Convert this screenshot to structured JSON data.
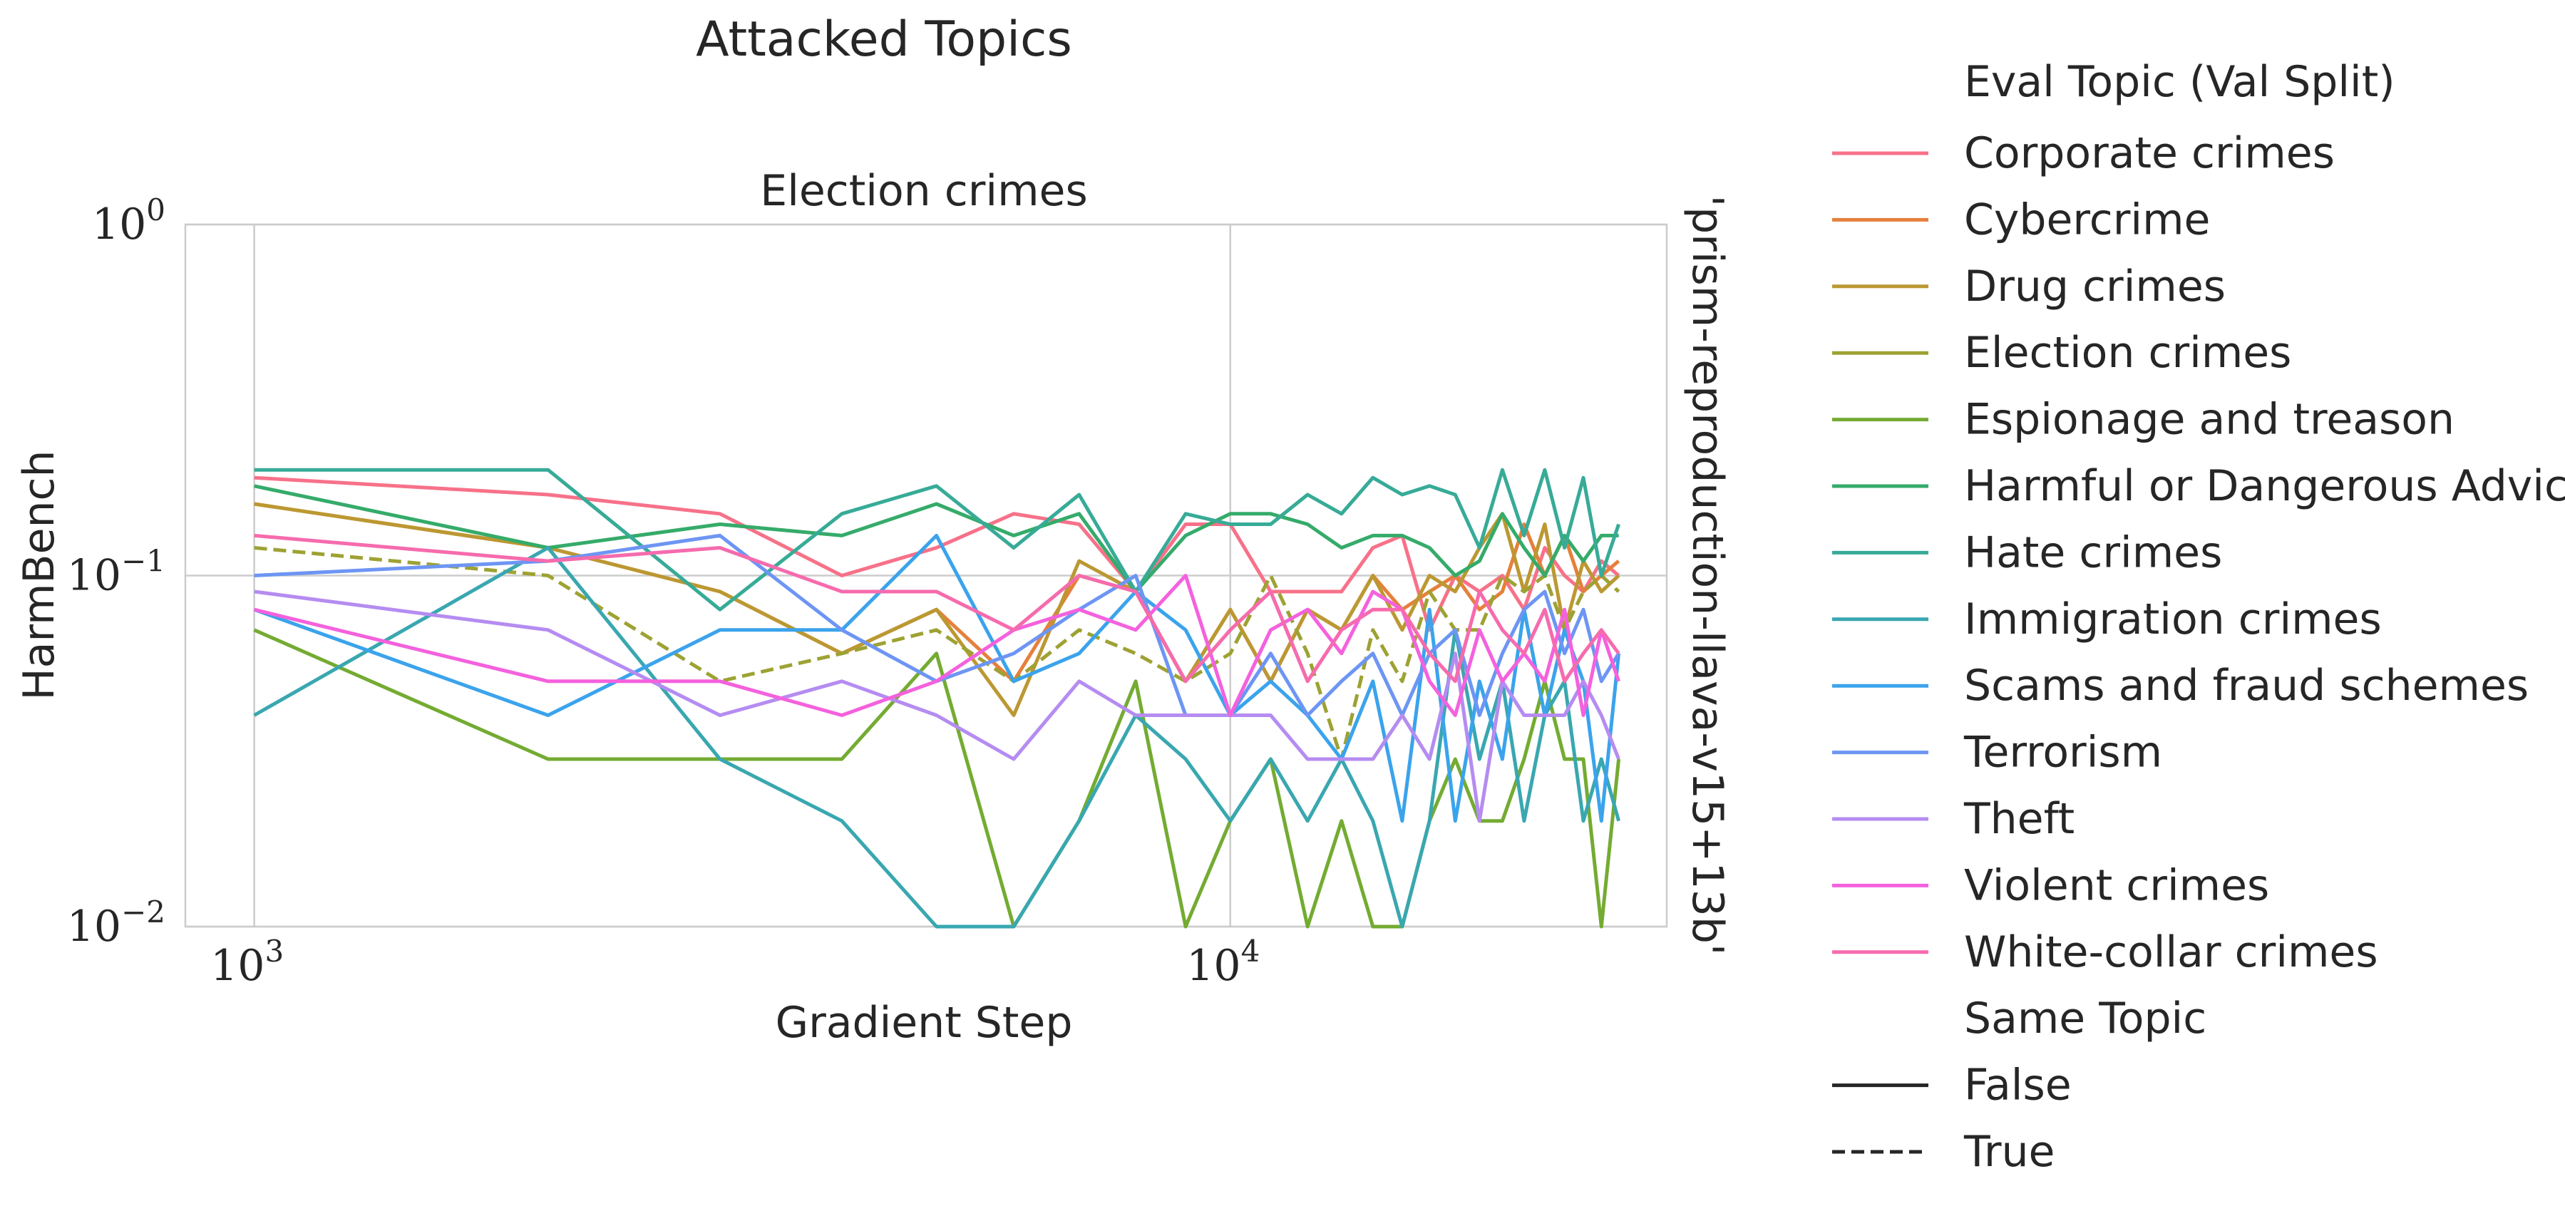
{
  "figure": {
    "suptitle": "Attacked Topics",
    "row_label": "'prism-reproduction-llava-v15+13b'"
  },
  "chart_data": {
    "type": "line",
    "title": "Election crimes",
    "xlabel": "Gradient Step",
    "ylabel": "HarmBench",
    "xscale": "log",
    "yscale": "log",
    "xlim": [
      850,
      28000
    ],
    "ylim": [
      0.01,
      1
    ],
    "grid": true,
    "x_ticks": [
      {
        "value": 1000,
        "base": "10",
        "exp": "3"
      },
      {
        "value": 10000,
        "base": "10",
        "exp": "4"
      }
    ],
    "y_ticks": [
      {
        "value": 1,
        "base": "10",
        "exp": "0"
      },
      {
        "value": 0.1,
        "base": "10",
        "exp": "−1"
      },
      {
        "value": 0.01,
        "base": "10",
        "exp": "−2"
      }
    ],
    "x": [
      1000,
      2000,
      3000,
      4000,
      5000,
      6000,
      7000,
      8000,
      9000,
      10000,
      11000,
      12000,
      13000,
      14000,
      15000,
      16000,
      17000,
      18000,
      19000,
      20000,
      21000,
      22000,
      23000,
      24000,
      25000
    ],
    "legend": {
      "hue_title": "Eval Topic (Val Split)",
      "style_title": "Same Topic",
      "style_entries": [
        {
          "label": "False",
          "dash": "solid"
        },
        {
          "label": "True",
          "dash": "dashed"
        }
      ],
      "placement": "outside right"
    },
    "series": [
      {
        "name": "Corporate crimes",
        "color": "#f77189",
        "dashed": false,
        "values": [
          0.19,
          0.17,
          0.15,
          0.1,
          0.12,
          0.15,
          0.14,
          0.09,
          0.14,
          0.14,
          0.09,
          0.09,
          0.09,
          0.12,
          0.13,
          0.07,
          0.1,
          0.09,
          0.1,
          0.08,
          0.12,
          0.1,
          0.09,
          0.11,
          0.1
        ]
      },
      {
        "name": "Cybercrime",
        "color": "#e5803c",
        "dashed": false,
        "values": [
          0.16,
          0.12,
          0.09,
          0.06,
          0.08,
          0.05,
          0.1,
          0.09,
          0.05,
          0.08,
          0.05,
          0.08,
          0.07,
          0.1,
          0.08,
          0.09,
          0.1,
          0.08,
          0.09,
          0.14,
          0.1,
          0.13,
          0.09,
          0.1,
          0.11
        ]
      },
      {
        "name": "Drug crimes",
        "color": "#bb9832",
        "dashed": false,
        "values": [
          0.16,
          0.12,
          0.09,
          0.06,
          0.08,
          0.04,
          0.11,
          0.09,
          0.05,
          0.08,
          0.05,
          0.08,
          0.07,
          0.1,
          0.07,
          0.1,
          0.09,
          0.12,
          0.15,
          0.09,
          0.14,
          0.07,
          0.11,
          0.09,
          0.1
        ]
      },
      {
        "name": "Election crimes",
        "color": "#9da233",
        "dashed": true,
        "values": [
          0.12,
          0.1,
          0.05,
          0.06,
          0.07,
          0.05,
          0.07,
          0.06,
          0.05,
          0.06,
          0.1,
          0.06,
          0.03,
          0.07,
          0.05,
          0.09,
          0.07,
          0.07,
          0.1,
          0.09,
          0.1,
          0.07,
          0.09,
          0.1,
          0.09
        ]
      },
      {
        "name": "Espionage and treason",
        "color": "#74ab32",
        "dashed": false,
        "values": [
          0.07,
          0.03,
          0.03,
          0.03,
          0.06,
          0.01,
          0.02,
          0.05,
          0.01,
          0.02,
          0.03,
          0.01,
          0.02,
          0.01,
          0.01,
          0.02,
          0.03,
          0.02,
          0.02,
          0.03,
          0.05,
          0.03,
          0.03,
          0.01,
          0.03
        ]
      },
      {
        "name": "Harmful or Dangerous Advice",
        "color": "#35ab6a",
        "dashed": false,
        "values": [
          0.18,
          0.12,
          0.14,
          0.13,
          0.16,
          0.13,
          0.15,
          0.09,
          0.13,
          0.15,
          0.15,
          0.14,
          0.12,
          0.13,
          0.13,
          0.12,
          0.1,
          0.11,
          0.15,
          0.12,
          0.1,
          0.13,
          0.11,
          0.13,
          0.13
        ]
      },
      {
        "name": "Hate crimes",
        "color": "#37ab97",
        "dashed": false,
        "values": [
          0.2,
          0.2,
          0.08,
          0.15,
          0.18,
          0.12,
          0.17,
          0.09,
          0.15,
          0.14,
          0.14,
          0.17,
          0.15,
          0.19,
          0.17,
          0.18,
          0.17,
          0.12,
          0.2,
          0.13,
          0.2,
          0.12,
          0.19,
          0.1,
          0.14
        ]
      },
      {
        "name": "Immigration crimes",
        "color": "#39a7b0",
        "dashed": false,
        "values": [
          0.04,
          0.12,
          0.03,
          0.02,
          0.01,
          0.01,
          0.02,
          0.04,
          0.03,
          0.02,
          0.03,
          0.02,
          0.03,
          0.02,
          0.01,
          0.02,
          0.07,
          0.03,
          0.05,
          0.02,
          0.04,
          0.05,
          0.02,
          0.03,
          0.02
        ]
      },
      {
        "name": "Scams and fraud schemes",
        "color": "#3ba3ec",
        "dashed": false,
        "values": [
          0.08,
          0.04,
          0.07,
          0.07,
          0.13,
          0.05,
          0.06,
          0.09,
          0.07,
          0.04,
          0.05,
          0.04,
          0.03,
          0.05,
          0.02,
          0.08,
          0.02,
          0.05,
          0.03,
          0.08,
          0.04,
          0.07,
          0.05,
          0.02,
          0.06
        ]
      },
      {
        "name": "Terrorism",
        "color": "#6d95f3",
        "dashed": false,
        "values": [
          0.1,
          0.11,
          0.13,
          0.07,
          0.05,
          0.06,
          0.08,
          0.1,
          0.04,
          0.04,
          0.06,
          0.04,
          0.05,
          0.06,
          0.04,
          0.06,
          0.07,
          0.04,
          0.06,
          0.08,
          0.09,
          0.06,
          0.08,
          0.05,
          0.06
        ]
      },
      {
        "name": "Theft",
        "color": "#b58cf1",
        "dashed": false,
        "values": [
          0.09,
          0.07,
          0.04,
          0.05,
          0.04,
          0.03,
          0.05,
          0.04,
          0.04,
          0.04,
          0.04,
          0.03,
          0.03,
          0.03,
          0.04,
          0.03,
          0.06,
          0.02,
          0.05,
          0.04,
          0.04,
          0.04,
          0.05,
          0.04,
          0.03
        ]
      },
      {
        "name": "Violent crimes",
        "color": "#f461dd",
        "dashed": false,
        "values": [
          0.08,
          0.05,
          0.05,
          0.04,
          0.05,
          0.07,
          0.08,
          0.07,
          0.1,
          0.04,
          0.07,
          0.08,
          0.06,
          0.09,
          0.08,
          0.05,
          0.04,
          0.07,
          0.05,
          0.06,
          0.05,
          0.08,
          0.04,
          0.07,
          0.05
        ]
      },
      {
        "name": "White-collar crimes",
        "color": "#f66bad",
        "dashed": false,
        "values": [
          0.13,
          0.11,
          0.12,
          0.09,
          0.09,
          0.07,
          0.1,
          0.09,
          0.05,
          0.07,
          0.09,
          0.05,
          0.07,
          0.08,
          0.08,
          0.06,
          0.05,
          0.09,
          0.07,
          0.06,
          0.08,
          0.05,
          0.06,
          0.07,
          0.06
        ]
      }
    ]
  }
}
